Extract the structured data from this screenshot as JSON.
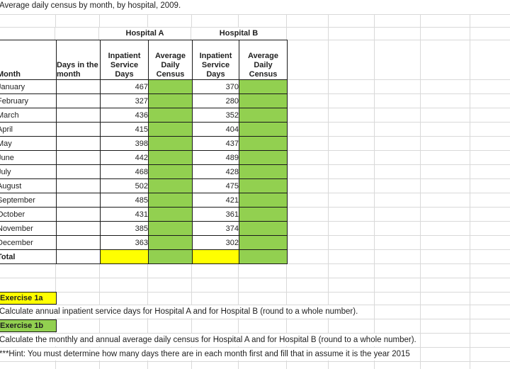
{
  "title": "Average daily census by month, by hospital, 2009.",
  "table": {
    "group_headers": [
      {
        "label": "Hospital A"
      },
      {
        "label": "Hospital B"
      }
    ],
    "columns": [
      "Month",
      "Days in the month",
      "Inpatient Service Days",
      "Average Daily Census",
      "Inpatient Service Days",
      "Average Daily Census"
    ],
    "rows": [
      {
        "month": "January",
        "days": "",
        "a_days": "467",
        "a_census": "",
        "b_days": "370",
        "b_census": ""
      },
      {
        "month": "February",
        "days": "",
        "a_days": "327",
        "a_census": "",
        "b_days": "280",
        "b_census": ""
      },
      {
        "month": "March",
        "days": "",
        "a_days": "436",
        "a_census": "",
        "b_days": "352",
        "b_census": ""
      },
      {
        "month": "April",
        "days": "",
        "a_days": "415",
        "a_census": "",
        "b_days": "404",
        "b_census": ""
      },
      {
        "month": "May",
        "days": "",
        "a_days": "398",
        "a_census": "",
        "b_days": "437",
        "b_census": ""
      },
      {
        "month": "June",
        "days": "",
        "a_days": "442",
        "a_census": "",
        "b_days": "489",
        "b_census": ""
      },
      {
        "month": "July",
        "days": "",
        "a_days": "468",
        "a_census": "",
        "b_days": "428",
        "b_census": ""
      },
      {
        "month": "August",
        "days": "",
        "a_days": "502",
        "a_census": "",
        "b_days": "475",
        "b_census": ""
      },
      {
        "month": "September",
        "days": "",
        "a_days": "485",
        "a_census": "",
        "b_days": "421",
        "b_census": ""
      },
      {
        "month": "October",
        "days": "",
        "a_days": "431",
        "a_census": "",
        "b_days": "361",
        "b_census": ""
      },
      {
        "month": "November",
        "days": "",
        "a_days": "385",
        "a_census": "",
        "b_days": "374",
        "b_census": ""
      },
      {
        "month": "December",
        "days": "",
        "a_days": "363",
        "a_census": "",
        "b_days": "302",
        "b_census": ""
      },
      {
        "month": "Total",
        "days": "",
        "a_days": "",
        "a_census": "",
        "b_days": "",
        "b_census": "",
        "total": true
      }
    ]
  },
  "exercises": {
    "ex1a_label": "Exercise 1a",
    "ex1a_text": "Calculate annual inpatient service days for Hospital A and for Hospital B (round to a whole number).",
    "ex1b_label": "Exercise 1b",
    "ex1b_text": "Calculate the monthly and annual average daily census for Hospital A and for Hospital B (round to a whole number).",
    "hint": "***Hint:  You must determine how many days there are in each month first and fill that in assume it is the year 2015"
  },
  "colors": {
    "fill_green": "#92D050",
    "fill_yellow": "#FFFF00",
    "gridline": "#D9D9D9",
    "border": "#1A1A1A"
  }
}
